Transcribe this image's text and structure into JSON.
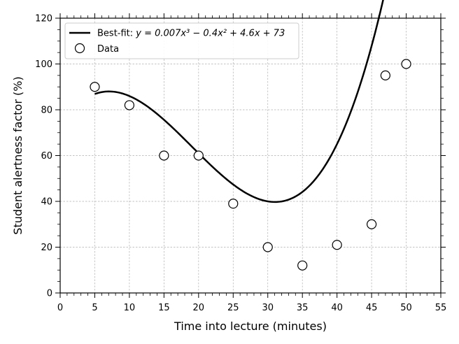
{
  "chart_data": {
    "type": "scatter",
    "xlabel": "Time into lecture (minutes)",
    "ylabel": "Student alertness factor (%)",
    "xlim": [
      0,
      55
    ],
    "ylim": [
      0,
      120
    ],
    "xticks": [
      0,
      5,
      10,
      15,
      20,
      25,
      30,
      35,
      40,
      45,
      50,
      55
    ],
    "yticks": [
      0,
      20,
      40,
      60,
      80,
      100,
      120
    ],
    "grid": true,
    "legend_position": "top-left",
    "series": [
      {
        "name": "Data",
        "kind": "scatter",
        "marker": "open-circle",
        "x": [
          5,
          10,
          15,
          20,
          25,
          30,
          35,
          40,
          45,
          47,
          50
        ],
        "y": [
          90,
          82,
          60,
          60,
          39,
          20,
          12,
          21,
          30,
          95,
          100
        ]
      },
      {
        "name": "Best-fit",
        "kind": "line",
        "color": "#000000",
        "x_range": [
          5,
          50
        ],
        "coefficients": [
          0.007,
          -0.4,
          4.6,
          73
        ]
      }
    ],
    "legend": {
      "fit_prefix": "Best-fit: ",
      "fit_equation": "y = 0.007x³ − 0.4x² + 4.6x + 73",
      "data_label": "Data"
    }
  }
}
